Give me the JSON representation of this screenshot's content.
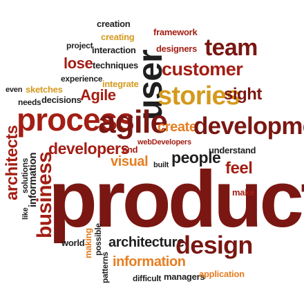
{
  "colors": {
    "dark": "#1f1f1f",
    "maroon": "#7a1712",
    "red": "#a31e14",
    "orange": "#e67e22",
    "gold": "#d49a1e"
  },
  "words": {
    "creation": "creation",
    "creating": "creating",
    "project": "project",
    "interaction": "interaction",
    "user": "user",
    "framework": "framework",
    "designers": "designers",
    "team": "team",
    "lose": "lose",
    "techniques": "techniques",
    "customer": "customer",
    "experience": "experience",
    "integrate": "integrate",
    "even": "even",
    "sketches": "sketches",
    "agile_cap": "Agile",
    "stories": "stories",
    "sight": "sight",
    "needs": "needs",
    "decisions": "decisions",
    "process": "process",
    "agile": "agile",
    "create": "create",
    "development": "development",
    "architects": "architects",
    "solutions": "solutions",
    "developers": "developers",
    "end": "end",
    "webdevelopers": "webDevelopers",
    "understand": "understand",
    "information_v": "information",
    "business": "business",
    "visual": "visual",
    "built": "built",
    "people": "people",
    "feel": "feel",
    "like": "like",
    "product": "product",
    "make": "make",
    "world": "world",
    "making": "making",
    "possible": "possible",
    "architecture": "architecture",
    "design": "design",
    "patterns": "patterns",
    "information": "information",
    "difficult": "difficult",
    "managers": "managers",
    "application": "application"
  }
}
